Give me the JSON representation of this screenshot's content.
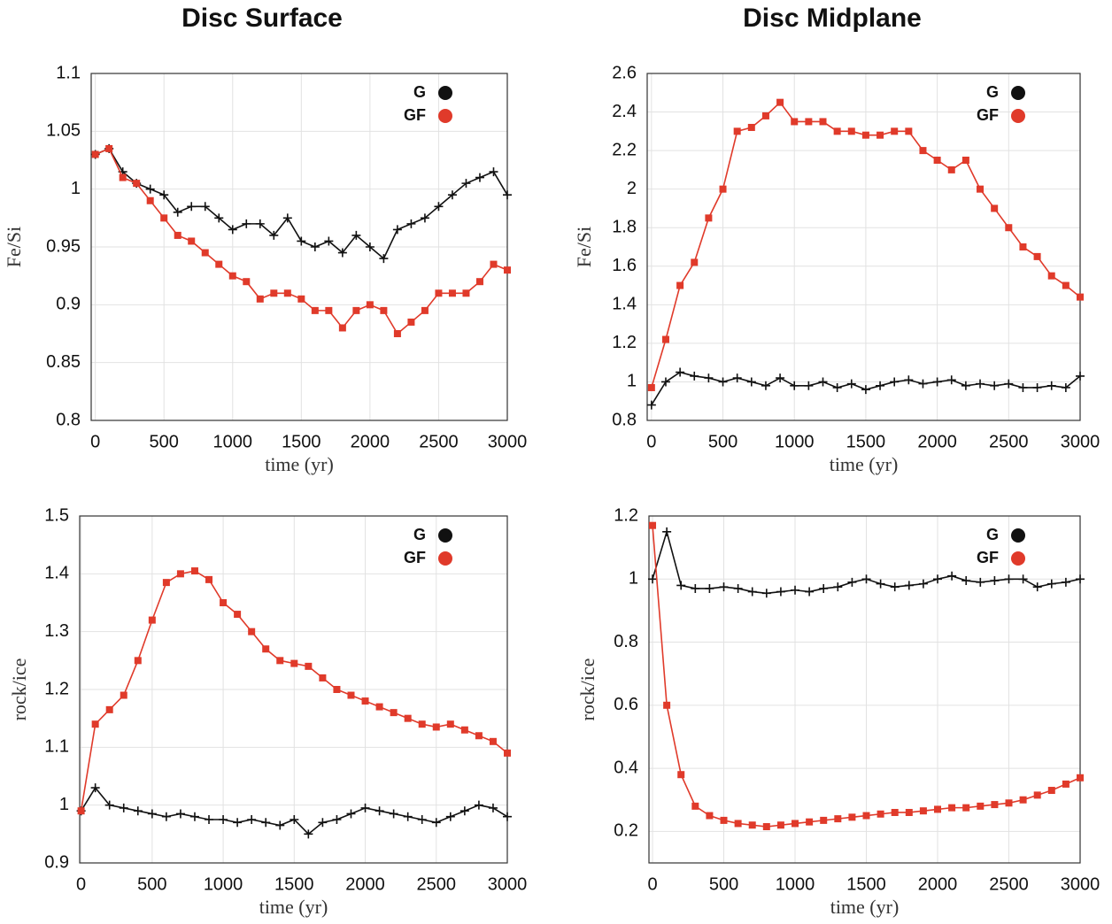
{
  "column_titles": [
    "Disc Surface",
    "Disc Midplane"
  ],
  "chart_data": [
    {
      "type": "line",
      "xlabel": "time (yr)",
      "ylabel": "Fe/Si",
      "grid": true,
      "legend": "upper right",
      "x": [
        0,
        100,
        200,
        300,
        400,
        500,
        600,
        700,
        800,
        900,
        1000,
        1100,
        1200,
        1300,
        1400,
        1500,
        1600,
        1700,
        1800,
        1900,
        2000,
        2100,
        2200,
        2300,
        2400,
        2500,
        2600,
        2700,
        2800,
        2900,
        3000
      ],
      "xlim": [
        -30,
        3000
      ],
      "xticks": [
        0,
        500,
        1000,
        1500,
        2000,
        2500,
        3000
      ],
      "ylim": [
        0.8,
        1.1
      ],
      "yticks": [
        0.8,
        0.85,
        0.9,
        0.95,
        1,
        1.05,
        1.1
      ],
      "series": [
        {
          "name": "G",
          "color": "#111111",
          "marker": "plus",
          "values": [
            1.03,
            1.035,
            1.015,
            1.005,
            1.0,
            0.995,
            0.98,
            0.985,
            0.985,
            0.975,
            0.965,
            0.97,
            0.97,
            0.96,
            0.975,
            0.955,
            0.95,
            0.955,
            0.945,
            0.96,
            0.95,
            0.94,
            0.965,
            0.97,
            0.975,
            0.985,
            0.995,
            1.005,
            1.01,
            1.015,
            0.995
          ]
        },
        {
          "name": "GF",
          "color": "#e03a2a",
          "marker": "square",
          "values": [
            1.03,
            1.035,
            1.01,
            1.005,
            0.99,
            0.975,
            0.96,
            0.955,
            0.945,
            0.935,
            0.925,
            0.92,
            0.905,
            0.91,
            0.91,
            0.905,
            0.895,
            0.895,
            0.88,
            0.895,
            0.9,
            0.895,
            0.875,
            0.885,
            0.895,
            0.91,
            0.91,
            0.91,
            0.92,
            0.935,
            0.93
          ]
        }
      ]
    },
    {
      "type": "line",
      "xlabel": "time (yr)",
      "ylabel": "Fe/Si",
      "grid": true,
      "legend": "upper right",
      "x": [
        0,
        100,
        200,
        300,
        400,
        500,
        600,
        700,
        800,
        900,
        1000,
        1100,
        1200,
        1300,
        1400,
        1500,
        1600,
        1700,
        1800,
        1900,
        2000,
        2100,
        2200,
        2300,
        2400,
        2500,
        2600,
        2700,
        2800,
        2900,
        3000
      ],
      "xlim": [
        -30,
        3000
      ],
      "xticks": [
        0,
        500,
        1000,
        1500,
        2000,
        2500,
        3000
      ],
      "ylim": [
        0.8,
        2.6
      ],
      "yticks": [
        0.8,
        1,
        1.2,
        1.4,
        1.6,
        1.8,
        2,
        2.2,
        2.4,
        2.6
      ],
      "series": [
        {
          "name": "G",
          "color": "#111111",
          "marker": "plus",
          "values": [
            0.88,
            1.0,
            1.05,
            1.03,
            1.02,
            1.0,
            1.02,
            1.0,
            0.98,
            1.02,
            0.98,
            0.98,
            1.0,
            0.97,
            0.99,
            0.96,
            0.98,
            1.0,
            1.01,
            0.99,
            1.0,
            1.01,
            0.98,
            0.99,
            0.98,
            0.99,
            0.97,
            0.97,
            0.98,
            0.97,
            1.03
          ]
        },
        {
          "name": "GF",
          "color": "#e03a2a",
          "marker": "square",
          "values": [
            0.97,
            1.22,
            1.5,
            1.62,
            1.85,
            2.0,
            2.3,
            2.32,
            2.38,
            2.45,
            2.35,
            2.35,
            2.35,
            2.3,
            2.3,
            2.28,
            2.28,
            2.3,
            2.3,
            2.2,
            2.15,
            2.1,
            2.15,
            2.0,
            1.9,
            1.8,
            1.7,
            1.65,
            1.55,
            1.5,
            1.44
          ]
        }
      ]
    },
    {
      "type": "line",
      "xlabel": "time (yr)",
      "ylabel": "rock/ice",
      "grid": true,
      "legend": "upper right",
      "x": [
        0,
        100,
        200,
        300,
        400,
        500,
        600,
        700,
        800,
        900,
        1000,
        1100,
        1200,
        1300,
        1400,
        1500,
        1600,
        1700,
        1800,
        1900,
        2000,
        2100,
        2200,
        2300,
        2400,
        2500,
        2600,
        2700,
        2800,
        2900,
        3000
      ],
      "xlim": [
        -10,
        3000
      ],
      "xticks": [
        0,
        500,
        1000,
        1500,
        2000,
        2500,
        3000
      ],
      "ylim": [
        0.9,
        1.5
      ],
      "yticks": [
        0.9,
        1,
        1.1,
        1.2,
        1.3,
        1.4,
        1.5
      ],
      "series": [
        {
          "name": "G",
          "color": "#111111",
          "marker": "plus",
          "values": [
            0.99,
            1.03,
            1.0,
            0.995,
            0.99,
            0.985,
            0.98,
            0.985,
            0.98,
            0.975,
            0.975,
            0.97,
            0.975,
            0.97,
            0.965,
            0.975,
            0.95,
            0.97,
            0.975,
            0.985,
            0.995,
            0.99,
            0.985,
            0.98,
            0.975,
            0.97,
            0.98,
            0.99,
            1.0,
            0.995,
            0.98
          ]
        },
        {
          "name": "GF",
          "color": "#e03a2a",
          "marker": "square",
          "values": [
            0.99,
            1.14,
            1.165,
            1.19,
            1.25,
            1.32,
            1.385,
            1.4,
            1.405,
            1.39,
            1.35,
            1.33,
            1.3,
            1.27,
            1.25,
            1.245,
            1.24,
            1.22,
            1.2,
            1.19,
            1.18,
            1.17,
            1.16,
            1.15,
            1.14,
            1.135,
            1.14,
            1.13,
            1.12,
            1.11,
            1.09
          ]
        }
      ]
    },
    {
      "type": "line",
      "xlabel": "time (yr)",
      "ylabel": "rock/ice",
      "grid": true,
      "legend": "upper right",
      "x": [
        0,
        100,
        200,
        300,
        400,
        500,
        600,
        700,
        800,
        900,
        1000,
        1100,
        1200,
        1300,
        1400,
        1500,
        1600,
        1700,
        1800,
        1900,
        2000,
        2100,
        2200,
        2300,
        2400,
        2500,
        2600,
        2700,
        2800,
        2900,
        3000
      ],
      "xlim": [
        -25,
        3000
      ],
      "xticks": [
        0,
        500,
        1000,
        1500,
        2000,
        2500,
        3000
      ],
      "ylim": [
        0.1,
        1.2
      ],
      "yticks": [
        0.2,
        0.4,
        0.6,
        0.8,
        1,
        1.2
      ],
      "series": [
        {
          "name": "G",
          "color": "#111111",
          "marker": "plus",
          "values": [
            1.0,
            1.15,
            0.98,
            0.97,
            0.97,
            0.975,
            0.97,
            0.96,
            0.955,
            0.96,
            0.965,
            0.96,
            0.97,
            0.975,
            0.99,
            1.0,
            0.985,
            0.975,
            0.98,
            0.985,
            1.0,
            1.01,
            0.995,
            0.99,
            0.995,
            1.0,
            1.0,
            0.975,
            0.985,
            0.99,
            1.0
          ]
        },
        {
          "name": "GF",
          "color": "#e03a2a",
          "marker": "square",
          "values": [
            1.17,
            0.6,
            0.38,
            0.28,
            0.25,
            0.235,
            0.225,
            0.22,
            0.215,
            0.22,
            0.225,
            0.23,
            0.235,
            0.24,
            0.245,
            0.25,
            0.255,
            0.26,
            0.26,
            0.265,
            0.27,
            0.275,
            0.275,
            0.28,
            0.285,
            0.29,
            0.3,
            0.315,
            0.33,
            0.35,
            0.37
          ]
        }
      ]
    }
  ]
}
